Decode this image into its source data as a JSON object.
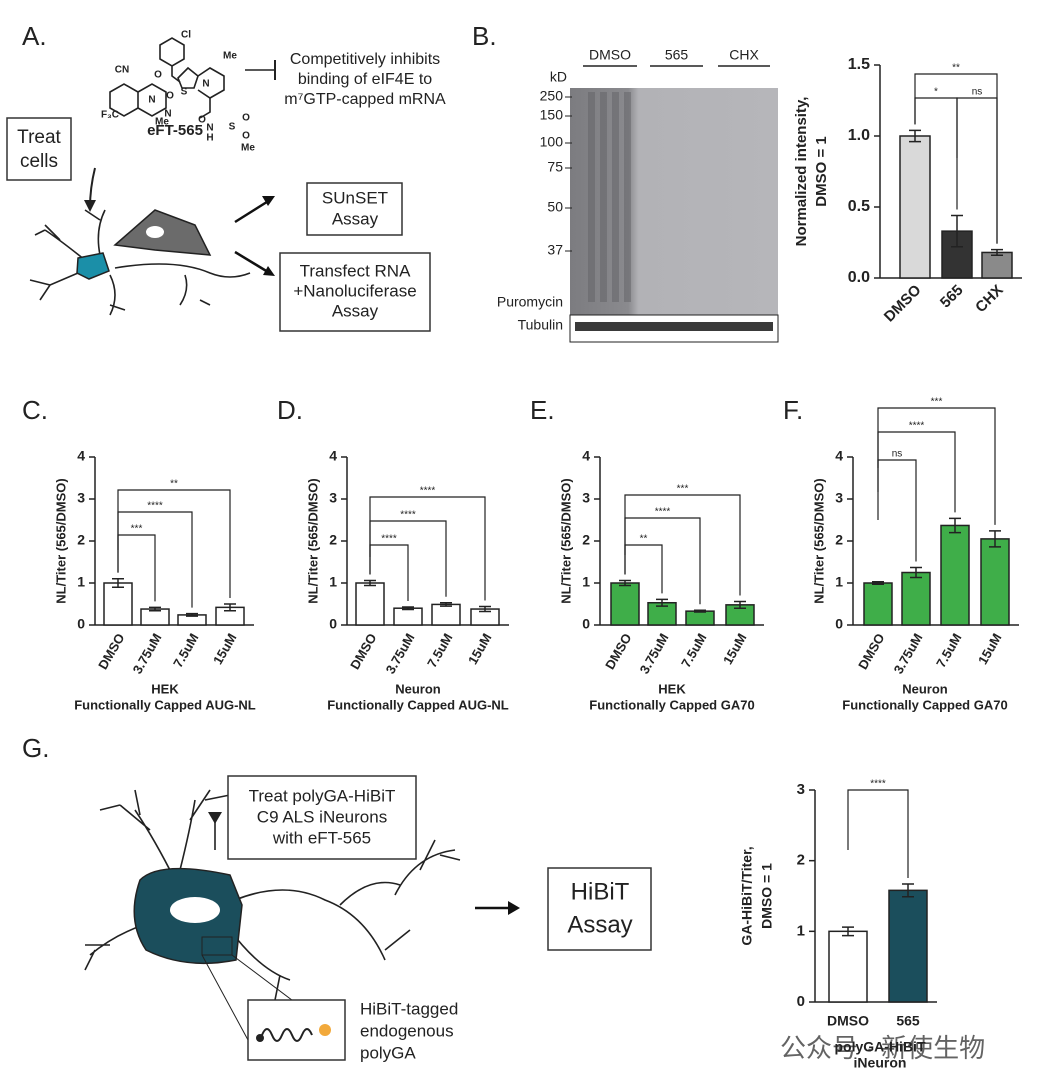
{
  "panel_labels": [
    "A.",
    "B.",
    "C.",
    "D.",
    "E.",
    "F.",
    "G."
  ],
  "panel_a": {
    "compound_name": "eFT-565",
    "atoms": [
      "Cl",
      "Me",
      "CN",
      "O",
      "N",
      "F₃C",
      "N",
      "Me",
      "O",
      "N",
      "S",
      "O",
      "N",
      "H",
      "S",
      "O",
      "O",
      "Me"
    ],
    "inhibition_text": [
      "Competitively inhibits",
      "binding of eIF4E to",
      "m⁷GTP-capped mRNA"
    ],
    "treat_box": [
      "Treat",
      "cells"
    ],
    "sunset_box": [
      "SUnSET",
      "Assay"
    ],
    "transfect_box": [
      "Transfect RNA",
      "+Nanoluciferase",
      "Assay"
    ]
  },
  "blot": {
    "lanes": [
      "DMSO",
      "565",
      "CHX"
    ],
    "unit": "kD",
    "markers": [
      "250",
      "150",
      "100",
      "75",
      "50",
      "37"
    ],
    "puromycin_label": "Puromycin",
    "tubulin_label": "Tubulin"
  },
  "panel_g": {
    "treat_box": [
      "Treat polyGA-HiBiT",
      "C9 ALS iNeurons",
      "with eFT-565"
    ],
    "assay_box": [
      "HiBiT",
      "Assay"
    ],
    "tag_text": [
      "HiBiT-tagged",
      "endogenous",
      "polyGA"
    ]
  },
  "watermark": "公众号 · 新使生物",
  "chart_data": [
    {
      "type": "bar",
      "y_label": [
        "Normalized intensity,",
        "DMSO = 1"
      ],
      "categories": [
        "DMSO",
        "565",
        "CHX"
      ],
      "values": [
        1.0,
        0.33,
        0.18
      ],
      "errors": [
        0.04,
        0.11,
        0.02
      ],
      "colors": [
        "#d9d9d9",
        "#333333",
        "#8a8a8a"
      ],
      "ylim": [
        0,
        1.5
      ],
      "yticks": [
        {
          "value": 0,
          "label": "0.0"
        },
        {
          "value": 0.5,
          "label": "0.5"
        },
        {
          "value": 1,
          "label": "1.0"
        },
        {
          "value": 1.5,
          "label": "1.5"
        }
      ],
      "annotations": [
        "*",
        "ns",
        "**"
      ]
    },
    {
      "type": "bar",
      "y_label": [
        "NL/Titer (565/DMSO)"
      ],
      "x_label": [
        "HEK",
        "Functionally Capped AUG-NL"
      ],
      "categories": [
        "DMSO",
        "3.75uM",
        "7.5uM",
        "15uM"
      ],
      "values": [
        1.0,
        0.38,
        0.24,
        0.42
      ],
      "errors": [
        0.1,
        0.04,
        0.03,
        0.08
      ],
      "colors": [
        "#ffffff",
        "#ffffff",
        "#ffffff",
        "#ffffff"
      ],
      "ylim": [
        0,
        4
      ],
      "yticks": [
        0,
        1,
        2,
        3,
        4
      ],
      "annotations": [
        "***",
        "****",
        "**"
      ]
    },
    {
      "type": "bar",
      "y_label": [
        "NL/Titer (565/DMSO)"
      ],
      "x_label": [
        "Neuron",
        "Functionally Capped AUG-NL"
      ],
      "categories": [
        "DMSO",
        "3.75uM",
        "7.5uM",
        "15uM"
      ],
      "values": [
        1.0,
        0.4,
        0.49,
        0.38
      ],
      "errors": [
        0.06,
        0.03,
        0.04,
        0.06
      ],
      "colors": [
        "#ffffff",
        "#ffffff",
        "#ffffff",
        "#ffffff"
      ],
      "ylim": [
        0,
        4
      ],
      "yticks": [
        0,
        1,
        2,
        3,
        4
      ],
      "annotations": [
        "****",
        "****",
        "****"
      ]
    },
    {
      "type": "bar",
      "y_label": [
        "NL/Titer (565/DMSO)"
      ],
      "x_label": [
        "HEK",
        "Functionally Capped GA70"
      ],
      "categories": [
        "DMSO",
        "3.75uM",
        "7.5uM",
        "15uM"
      ],
      "values": [
        1.0,
        0.53,
        0.33,
        0.48
      ],
      "errors": [
        0.06,
        0.08,
        0.02,
        0.08
      ],
      "colors": [
        "#3fae49",
        "#3fae49",
        "#3fae49",
        "#3fae49"
      ],
      "ylim": [
        0,
        4
      ],
      "yticks": [
        0,
        1,
        2,
        3,
        4
      ],
      "annotations": [
        "**",
        "****",
        "***"
      ]
    },
    {
      "type": "bar",
      "y_label": [
        "NL/Titer (565/DMSO)"
      ],
      "x_label": [
        "Neuron",
        "Functionally Capped GA70"
      ],
      "categories": [
        "DMSO",
        "3.75uM",
        "7.5uM",
        "15uM"
      ],
      "values": [
        1.0,
        1.25,
        2.37,
        2.05
      ],
      "errors": [
        0.03,
        0.12,
        0.17,
        0.19
      ],
      "colors": [
        "#3fae49",
        "#3fae49",
        "#3fae49",
        "#3fae49"
      ],
      "ylim": [
        0,
        4
      ],
      "yticks": [
        0,
        1,
        2,
        3,
        4
      ],
      "annotations": [
        "ns",
        "****",
        "***"
      ]
    },
    {
      "type": "bar",
      "y_label": [
        "GA-HiBiT/Titer,",
        "DMSO = 1"
      ],
      "x_label": [
        "polyGA-HiBiT",
        "iNeuron"
      ],
      "categories": [
        "DMSO",
        "565"
      ],
      "values": [
        1.0,
        1.58
      ],
      "errors": [
        0.06,
        0.09
      ],
      "colors": [
        "#ffffff",
        "#1b4e5c"
      ],
      "ylim": [
        0,
        3
      ],
      "yticks": [
        0,
        1,
        2,
        3
      ],
      "annotations": [
        "****"
      ]
    }
  ]
}
